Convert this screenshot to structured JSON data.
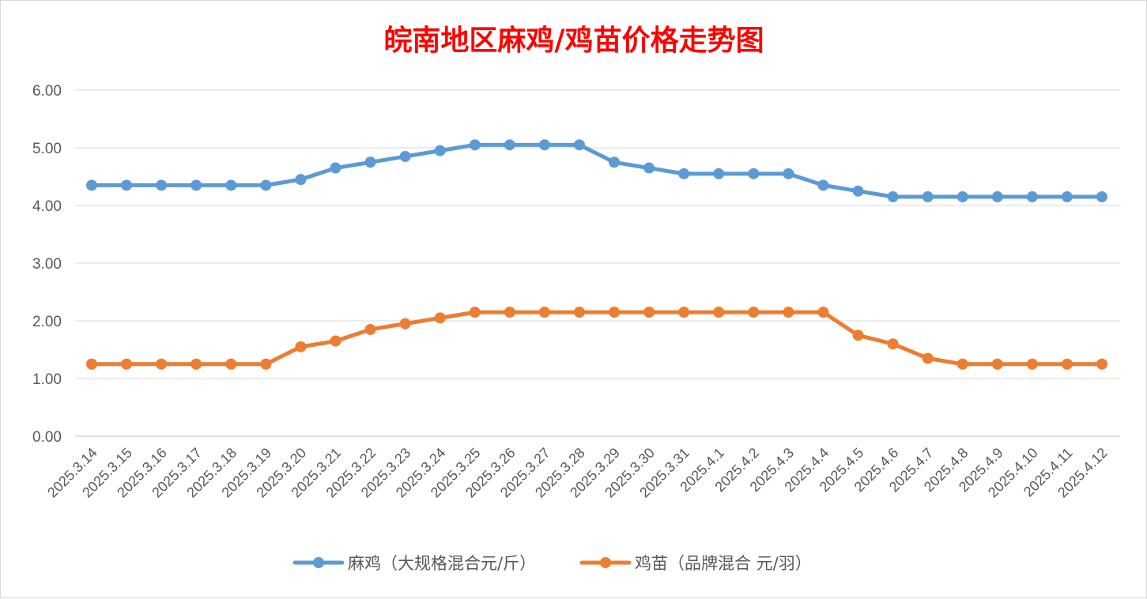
{
  "chart_data": {
    "type": "line",
    "title": "皖南地区麻鸡/鸡苗价格走势图",
    "title_color": "#ff0000",
    "xlabel": "",
    "ylabel": "",
    "ylim": [
      0,
      6
    ],
    "yticks": [
      "0.00",
      "1.00",
      "2.00",
      "3.00",
      "4.00",
      "5.00",
      "6.00"
    ],
    "grid": true,
    "legend_position": "bottom",
    "categories": [
      "2025.3.14",
      "2025.3.15",
      "2025.3.16",
      "2025.3.17",
      "2025.3.18",
      "2025.3.19",
      "2025.3.20",
      "2025.3.21",
      "2025.3.22",
      "2025.3.23",
      "2025.3.24",
      "2025.3.25",
      "2025.3.26",
      "2025.3.27",
      "2025.3.28",
      "2025.3.29",
      "2025.3.30",
      "2025.3.31",
      "2025.4.1",
      "2025.4.2",
      "2025.4.3",
      "2025.4.4",
      "2025.4.5",
      "2025.4.6",
      "2025.4.7",
      "2025.4.8",
      "2025.4.9",
      "2025.4.10",
      "2025.4.11",
      "2025.4.12"
    ],
    "series": [
      {
        "name": "麻鸡（大规格混合元/斤）",
        "color": "#5b9bd5",
        "values": [
          4.35,
          4.35,
          4.35,
          4.35,
          4.35,
          4.35,
          4.45,
          4.65,
          4.75,
          4.85,
          4.95,
          5.05,
          5.05,
          5.05,
          5.05,
          4.75,
          4.65,
          4.55,
          4.55,
          4.55,
          4.55,
          4.35,
          4.25,
          4.15,
          4.15,
          4.15,
          4.15,
          4.15,
          4.15,
          4.15
        ]
      },
      {
        "name": "鸡苗（品牌混合 元/羽）",
        "color": "#ed7d31",
        "values": [
          1.25,
          1.25,
          1.25,
          1.25,
          1.25,
          1.25,
          1.55,
          1.65,
          1.85,
          1.95,
          2.05,
          2.15,
          2.15,
          2.15,
          2.15,
          2.15,
          2.15,
          2.15,
          2.15,
          2.15,
          2.15,
          2.15,
          1.75,
          1.6,
          1.35,
          1.25,
          1.25,
          1.25,
          1.25,
          1.25
        ]
      }
    ]
  }
}
